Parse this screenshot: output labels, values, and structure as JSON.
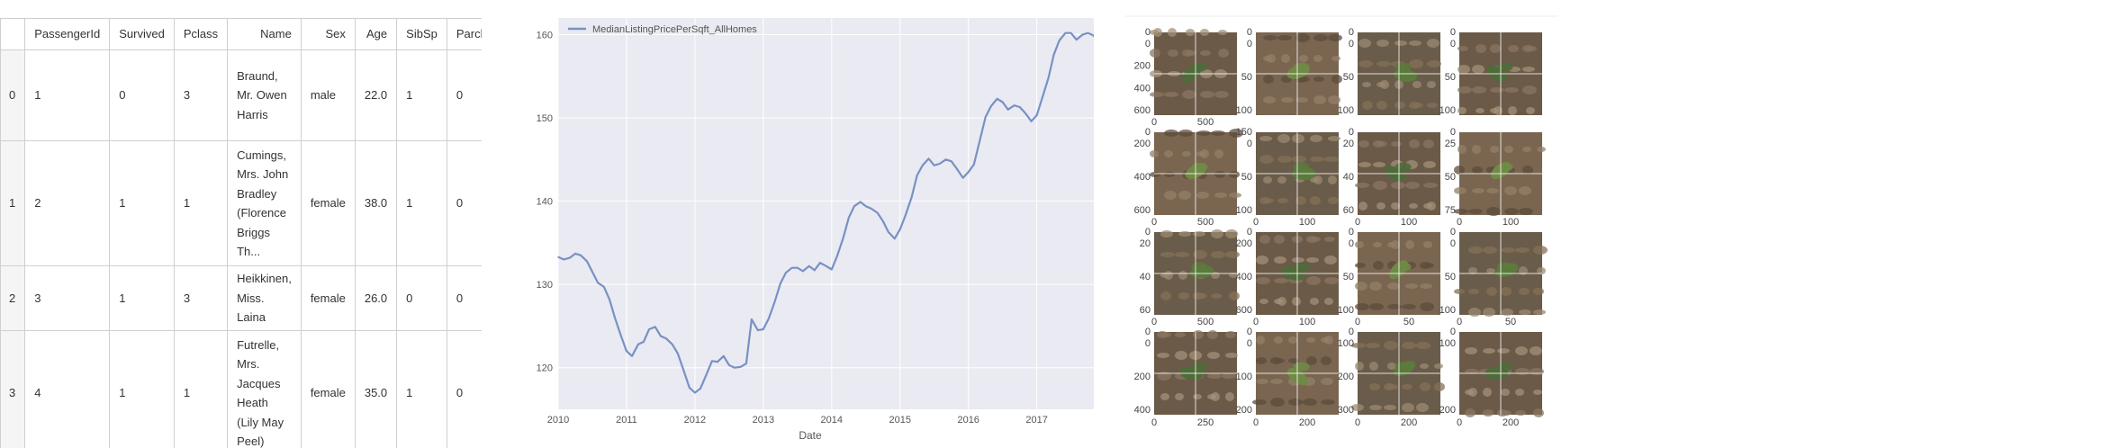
{
  "table": {
    "columns": [
      "",
      "PassengerId",
      "Survived",
      "Pclass",
      "Name",
      "Sex",
      "Age",
      "SibSp",
      "Parch"
    ],
    "rows": [
      {
        "index": "0",
        "PassengerId": "1",
        "Survived": "0",
        "Pclass": "3",
        "Name": "Braund, Mr. Owen Harris",
        "Sex": "male",
        "Age": "22.0",
        "SibSp": "1",
        "Parch": "0"
      },
      {
        "index": "1",
        "PassengerId": "2",
        "Survived": "1",
        "Pclass": "1",
        "Name": "Cumings, Mrs. John Bradley (Florence Briggs Th...",
        "Sex": "female",
        "Age": "38.0",
        "SibSp": "1",
        "Parch": "0"
      },
      {
        "index": "2",
        "PassengerId": "3",
        "Survived": "1",
        "Pclass": "3",
        "Name": "Heikkinen, Miss. Laina",
        "Sex": "female",
        "Age": "26.0",
        "SibSp": "0",
        "Parch": "0"
      },
      {
        "index": "3",
        "PassengerId": "4",
        "Survived": "1",
        "Pclass": "1",
        "Name": "Futrelle, Mrs. Jacques Heath (Lily May Peel)",
        "Sex": "female",
        "Age": "35.0",
        "SibSp": "1",
        "Parch": "0"
      }
    ]
  },
  "chart_data": {
    "type": "line",
    "title": "",
    "xlabel": "Date",
    "ylabel": "",
    "legend_placement": "top-left",
    "grid": true,
    "background": "#eaeaf2",
    "line_color": "#7891c4",
    "xlim": [
      2010.0,
      2017.9
    ],
    "ylim": [
      115.0,
      162.0
    ],
    "x_ticks": [
      "2010",
      "2011",
      "2012",
      "2013",
      "2014",
      "2015",
      "2016",
      "2017"
    ],
    "y_ticks": [
      "120",
      "130",
      "140",
      "150",
      "160"
    ],
    "series": [
      {
        "name": "MedianListingPricePerSqft_AllHomes",
        "x": [
          2010.0,
          2010.08,
          2010.17,
          2010.25,
          2010.33,
          2010.42,
          2010.5,
          2010.58,
          2010.67,
          2010.75,
          2010.83,
          2010.92,
          2011.0,
          2011.08,
          2011.17,
          2011.25,
          2011.33,
          2011.42,
          2011.5,
          2011.58,
          2011.67,
          2011.75,
          2011.83,
          2011.92,
          2012.0,
          2012.08,
          2012.17,
          2012.25,
          2012.33,
          2012.42,
          2012.5,
          2012.58,
          2012.67,
          2012.75,
          2012.83,
          2012.92,
          2013.0,
          2013.08,
          2013.17,
          2013.25,
          2013.33,
          2013.42,
          2013.5,
          2013.58,
          2013.67,
          2013.75,
          2013.83,
          2013.92,
          2014.0,
          2014.08,
          2014.17,
          2014.25,
          2014.33,
          2014.42,
          2014.5,
          2014.58,
          2014.67,
          2014.75,
          2014.83,
          2014.92,
          2015.0,
          2015.08,
          2015.17,
          2015.25,
          2015.33,
          2015.42,
          2015.5,
          2015.58,
          2015.67,
          2015.75,
          2015.83,
          2015.92,
          2016.0,
          2016.08,
          2016.17,
          2016.25,
          2016.33,
          2016.42,
          2016.5,
          2016.58,
          2016.67,
          2016.75,
          2016.83,
          2016.92,
          2017.0,
          2017.08,
          2017.17,
          2017.25,
          2017.33,
          2017.42,
          2017.5,
          2017.58,
          2017.67,
          2017.75,
          2017.83,
          2017.9
        ],
        "y": [
          133.3,
          133.0,
          133.2,
          133.7,
          133.5,
          132.8,
          131.5,
          130.2,
          129.7,
          128.2,
          126.0,
          123.8,
          122.0,
          121.4,
          122.8,
          123.1,
          124.6,
          124.9,
          123.8,
          123.5,
          122.8,
          121.7,
          119.8,
          117.6,
          117.0,
          117.5,
          119.2,
          120.8,
          120.7,
          121.4,
          120.3,
          120.0,
          120.1,
          120.5,
          125.8,
          124.5,
          124.6,
          125.9,
          128.0,
          130.1,
          131.4,
          132.0,
          132.0,
          131.6,
          132.2,
          131.7,
          132.6,
          132.2,
          131.8,
          133.4,
          135.6,
          138.0,
          139.4,
          139.9,
          139.4,
          139.1,
          138.6,
          137.6,
          136.3,
          135.5,
          136.6,
          138.3,
          140.5,
          143.1,
          144.3,
          145.1,
          144.3,
          144.5,
          145.0,
          144.8,
          143.9,
          142.8,
          143.5,
          144.4,
          147.4,
          150.1,
          151.4,
          152.3,
          151.9,
          151.0,
          151.5,
          151.3,
          150.6,
          149.6,
          150.3,
          152.4,
          154.8,
          157.6,
          159.3,
          160.2,
          160.2,
          159.4,
          160.0,
          160.2,
          159.9,
          159.0
        ]
      }
    ]
  },
  "image_grid": {
    "panels": [
      {
        "yticks": [
          "0",
          "200",
          "400",
          "600"
        ],
        "xticks": [
          "0",
          "500"
        ],
        "top_label": "0"
      },
      {
        "yticks": [
          "0",
          "50",
          "100"
        ],
        "xticks": [],
        "top_label": "0"
      },
      {
        "yticks": [
          "0",
          "50",
          "100"
        ],
        "xticks": [],
        "top_label": "0"
      },
      {
        "yticks": [
          "0",
          "50",
          "100"
        ],
        "xticks": [],
        "top_label": "0"
      },
      {
        "yticks": [
          "200",
          "400",
          "600"
        ],
        "xticks": [
          "0",
          "500"
        ],
        "top_label": "0"
      },
      {
        "yticks": [
          "0",
          "50",
          "100"
        ],
        "xticks": [
          "0",
          "100"
        ],
        "top_label": "150"
      },
      {
        "yticks": [
          "20",
          "40",
          "60"
        ],
        "xticks": [
          "0",
          "100"
        ],
        "top_label": "0"
      },
      {
        "yticks": [
          "25",
          "50",
          "75"
        ],
        "xticks": [
          "0",
          "100"
        ],
        "top_label": "0"
      },
      {
        "yticks": [
          "20",
          "40",
          "60"
        ],
        "xticks": [
          "0",
          "500"
        ],
        "top_label": "0"
      },
      {
        "yticks": [
          "200",
          "400",
          "600"
        ],
        "xticks": [
          "0",
          "100"
        ],
        "top_label": "0"
      },
      {
        "yticks": [
          "0",
          "50",
          "100"
        ],
        "xticks": [
          "0",
          "50"
        ],
        "top_label": "0"
      },
      {
        "yticks": [
          "0",
          "50",
          "100"
        ],
        "xticks": [
          "0",
          "50"
        ],
        "top_label": "0"
      },
      {
        "yticks": [
          "0",
          "200",
          "400"
        ],
        "xticks": [
          "0",
          "50"
        ],
        "top_label": "0"
      },
      {
        "yticks": [
          "0",
          "100",
          "200"
        ],
        "xticks": [
          "0",
          "500"
        ],
        "top_label": "0"
      },
      {
        "yticks": [
          "100",
          "200",
          "300"
        ],
        "xticks": [
          "0",
          "100"
        ],
        "top_label": "0"
      },
      {
        "yticks": [
          "100",
          "200"
        ],
        "xticks": [
          "0",
          "100"
        ],
        "top_label": "0"
      }
    ],
    "bottom_xticks": [
      [
        "0",
        "250"
      ],
      [
        "0",
        "200"
      ],
      [
        "0",
        "200"
      ],
      [
        "0",
        "200"
      ]
    ]
  }
}
